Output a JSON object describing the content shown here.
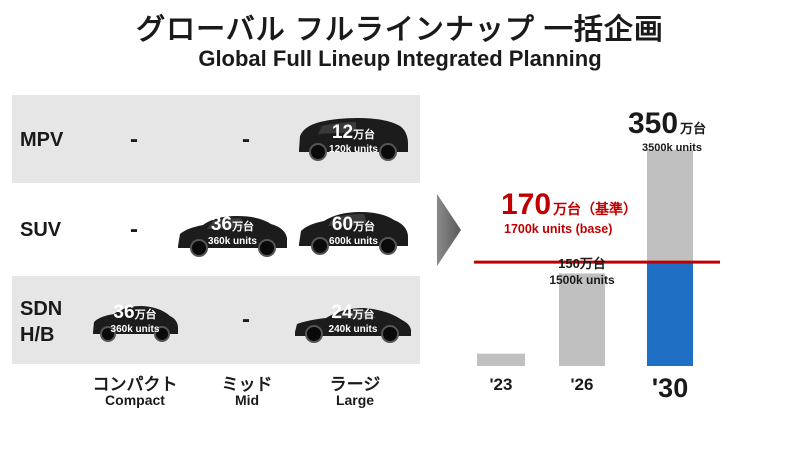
{
  "title_jp": "グローバル フルラインナップ 一括企画",
  "title_en": "Global Full Lineup Integrated Planning",
  "matrix": {
    "rows": [
      {
        "label": "MPV",
        "cells": [
          {
            "dash": "-"
          },
          {
            "dash": "-"
          },
          {
            "value": "12",
            "unit": "万台",
            "sub": "120k units",
            "icon": "minivan-icon"
          }
        ]
      },
      {
        "label": "SUV",
        "cells": [
          {
            "dash": "-"
          },
          {
            "value": "36",
            "unit": "万台",
            "sub": "360k units",
            "icon": "suv-icon"
          },
          {
            "value": "60",
            "unit": "万台",
            "sub": "600k units",
            "icon": "suv-icon"
          }
        ]
      },
      {
        "label": "SDN\nH/B",
        "cells": [
          {
            "value": "36",
            "unit": "万台",
            "sub": "360k units",
            "icon": "hatchback-icon"
          },
          {
            "dash": "-"
          },
          {
            "value": "24",
            "unit": "万台",
            "sub": "240k units",
            "icon": "sedan-icon"
          }
        ]
      }
    ],
    "columns": [
      {
        "jp": "コンパクト",
        "en": "Compact"
      },
      {
        "jp": "ミッド",
        "en": "Mid"
      },
      {
        "jp": "ラージ",
        "en": "Large"
      }
    ]
  },
  "chart_data": {
    "type": "bar",
    "categories": [
      "'23",
      "'26",
      "'30"
    ],
    "values": [
      20,
      150,
      350
    ],
    "base_value": 170,
    "colors": {
      "bar": "#c0c0c0",
      "highlight": "#1f6fc5",
      "base_line": "#c00000",
      "base_text": "#c00000"
    },
    "labels": {
      "bar_26_main": "150万台",
      "bar_26_sub": "1500k units",
      "bar_30_main_num": "350",
      "bar_30_main_unit": "万台",
      "bar_30_sub": "3500k units",
      "base_num": "170",
      "base_unit": "万台（基準）",
      "base_sub": "1700k units (base)"
    }
  }
}
